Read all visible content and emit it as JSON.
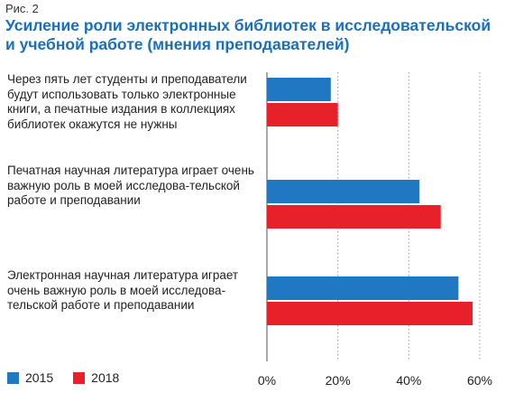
{
  "figure_label": "Рис. 2",
  "chart_data": {
    "type": "bar",
    "orientation": "horizontal",
    "title": "Усиление роли электронных библиотек в исследовательской и учебной работе (мнения преподавателей)",
    "categories": [
      "Через пять лет студенты и преподаватели будут использовать только электронные книги, а печатные издания в коллекциях библиотек окажутся не нужны",
      "Печатная научная литература играет очень важную роль в моей исследова-тельской работе и преподавании",
      "Электронная научная литература играет очень важную роль в моей исследова-тельской работе и преподавании"
    ],
    "series": [
      {
        "name": "2015",
        "color": "#1f78c1",
        "values": [
          18,
          43,
          54
        ]
      },
      {
        "name": "2018",
        "color": "#e8202a",
        "values": [
          20,
          49,
          58
        ]
      }
    ],
    "xlim": [
      0,
      60
    ],
    "xticks": [
      "0%",
      "20%",
      "40%",
      "60%"
    ],
    "grid": "vertical-dotted",
    "legend_position": "bottom-left"
  }
}
